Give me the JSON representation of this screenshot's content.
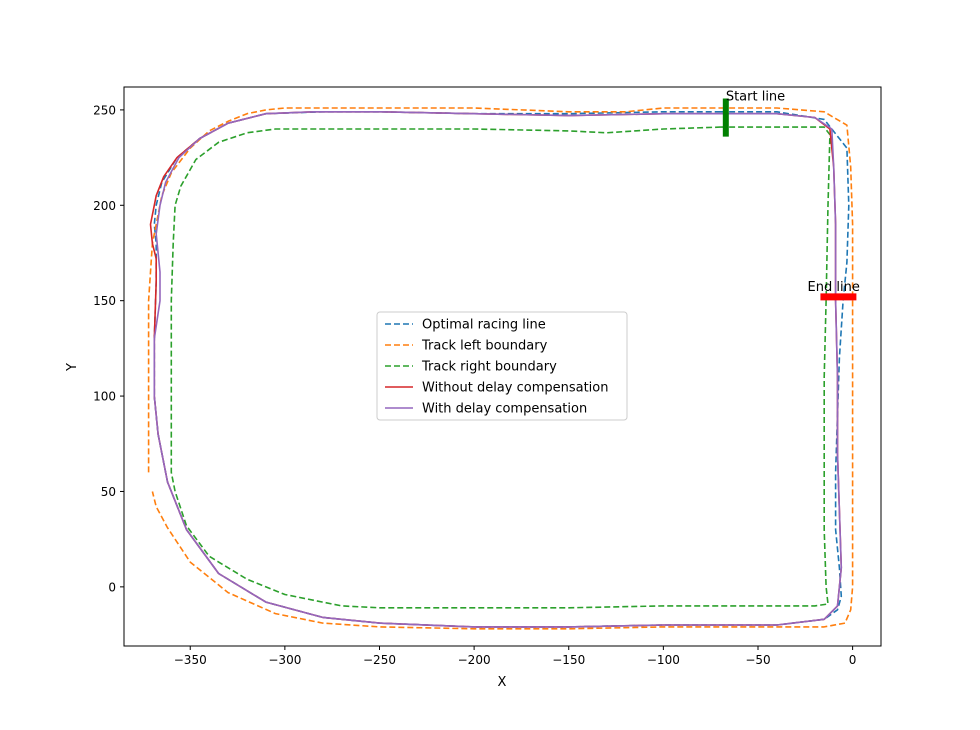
{
  "chart_data": {
    "type": "line",
    "title": "",
    "xlabel": "X",
    "ylabel": "Y",
    "xlim": [
      -385,
      15
    ],
    "ylim": [
      -31,
      262
    ],
    "x_ticks": [
      -350,
      -300,
      -250,
      -200,
      -150,
      -100,
      -50,
      0
    ],
    "x_tick_labels": [
      "−350",
      "−300",
      "−250",
      "−200",
      "−150",
      "−100",
      "−50",
      "0"
    ],
    "y_ticks": [
      0,
      50,
      100,
      150,
      200,
      250
    ],
    "y_tick_labels": [
      "0",
      "50",
      "100",
      "150",
      "200",
      "250"
    ],
    "grid": false,
    "legend_position": "center",
    "series": [
      {
        "name": "Optimal racing line",
        "color": "#1f77b4",
        "style": "dashed",
        "x": [
          -70,
          -40,
          -15,
          -3,
          -2,
          -3,
          -5,
          -7,
          -8,
          -9,
          -9,
          -7,
          -6,
          -8,
          -15,
          -40,
          -100,
          -150,
          -200,
          -250,
          -280,
          -310,
          -335,
          -352,
          -362,
          -367,
          -369,
          -369,
          -368,
          -368,
          -369,
          -368,
          -365,
          -357,
          -345,
          -330,
          -310,
          -280,
          -250,
          -200,
          -150,
          -100,
          -70
        ],
        "y": [
          249,
          249,
          245,
          230,
          200,
          170,
          150,
          120,
          90,
          60,
          30,
          10,
          -5,
          -12,
          -17,
          -20,
          -20,
          -21,
          -21,
          -19,
          -16,
          -8,
          7,
          30,
          55,
          80,
          100,
          130,
          160,
          180,
          190,
          200,
          212,
          225,
          235,
          243,
          248,
          249,
          249,
          248,
          248,
          249,
          249
        ]
      },
      {
        "name": "Track left boundary",
        "color": "#ff7f0e",
        "style": "dashed",
        "x": [
          -70,
          -40,
          -15,
          -3,
          -1,
          0,
          0,
          0,
          0,
          0,
          0,
          -1,
          -4,
          -15,
          -50,
          -100,
          -150,
          -200,
          -250,
          -280,
          -305,
          -330,
          -350,
          -362,
          -368,
          -370,
          "",
          -372,
          -372,
          -372,
          -370,
          -367,
          -365,
          -360,
          -350,
          -340,
          -330,
          -320,
          -310,
          -300,
          -280,
          -250,
          -200,
          -150,
          -120,
          -100,
          -70
        ],
        "y": [
          251,
          251,
          249,
          242,
          220,
          190,
          150,
          110,
          70,
          30,
          0,
          -12,
          -19,
          -21,
          -21,
          -21,
          -22,
          -22,
          -21,
          -19,
          -14,
          -3,
          13,
          31,
          42,
          50,
          "",
          60,
          100,
          150,
          180,
          195,
          205,
          217,
          230,
          239,
          244,
          248,
          250,
          251,
          251,
          251,
          251,
          249,
          249,
          251,
          251
        ]
      },
      {
        "name": "Track right boundary",
        "color": "#2ca02c",
        "style": "dashed",
        "x": [
          -70,
          -40,
          -15,
          -12,
          -13,
          -14,
          -15,
          -15,
          -15,
          -14,
          -13,
          -20,
          -60,
          -100,
          -150,
          -200,
          -250,
          -270,
          -300,
          -320,
          -340,
          -352,
          -358,
          -360,
          -360,
          -360,
          -359,
          -358,
          -355,
          -347,
          -335,
          -320,
          -305,
          -280,
          -250,
          -200,
          -150,
          -130,
          -100,
          -70
        ],
        "y": [
          241,
          241,
          241,
          237,
          200,
          150,
          110,
          70,
          30,
          0,
          -9,
          -10,
          -10,
          -10,
          -11,
          -11,
          -11,
          -10,
          -4,
          4,
          16,
          32,
          50,
          60,
          100,
          150,
          180,
          200,
          210,
          224,
          233,
          238,
          240,
          240,
          240,
          240,
          239,
          238,
          240,
          241
        ]
      },
      {
        "name": "Without delay compensation",
        "color": "#d62728",
        "style": "solid",
        "x": [
          -70,
          -40,
          -20,
          -12,
          -10,
          -9,
          -9,
          -8,
          -8,
          -7,
          -6,
          -8,
          -15,
          -40,
          -100,
          -150,
          -200,
          -250,
          -280,
          -310,
          -335,
          -352,
          -362,
          -367,
          -369,
          -369,
          -368,
          -368,
          -370,
          -371,
          -368,
          -364,
          -357,
          -345,
          -330,
          -310,
          -285,
          -250,
          -200,
          -150,
          -100,
          -70
        ],
        "y": [
          248,
          248,
          246,
          240,
          220,
          190,
          150,
          110,
          70,
          40,
          10,
          -10,
          -17,
          -20,
          -20,
          -21,
          -21,
          -19,
          -16,
          -8,
          7,
          30,
          55,
          80,
          100,
          130,
          160,
          172,
          180,
          190,
          205,
          215,
          225,
          235,
          243,
          248,
          249,
          249,
          248,
          247,
          248,
          248
        ]
      },
      {
        "name": "With delay compensation",
        "color": "#9467bd",
        "style": "solid",
        "x": [
          -70,
          -40,
          -20,
          -11,
          -10,
          -9,
          -9,
          -8,
          -8,
          -7,
          -6,
          -8,
          -15,
          -40,
          -100,
          -150,
          -200,
          -250,
          -280,
          -310,
          -335,
          -352,
          -362,
          -367,
          -369,
          -369,
          -366,
          -366,
          -367,
          -368,
          -366,
          -363,
          -356,
          -345,
          -330,
          -310,
          -285,
          -250,
          -200,
          -150,
          -100,
          -70
        ],
        "y": [
          248,
          248,
          246,
          240,
          220,
          190,
          150,
          110,
          70,
          40,
          10,
          -10,
          -17,
          -20,
          -20,
          -21,
          -21,
          -19,
          -16,
          -8,
          7,
          30,
          55,
          80,
          100,
          130,
          150,
          165,
          175,
          185,
          200,
          212,
          225,
          235,
          243,
          248,
          249,
          249,
          248,
          247,
          248,
          248
        ]
      }
    ],
    "annotations": [
      {
        "text": "Start line",
        "x": -67,
        "y": 255
      },
      {
        "text": "End line",
        "x": -10,
        "y": 155
      }
    ],
    "markers": [
      {
        "name": "start-line",
        "color": "#008000",
        "x": -67,
        "y_from": 236,
        "y_to": 256
      },
      {
        "name": "end-line",
        "color": "#ff0000",
        "y": 152,
        "x_from": -17,
        "x_to": 2
      }
    ]
  }
}
